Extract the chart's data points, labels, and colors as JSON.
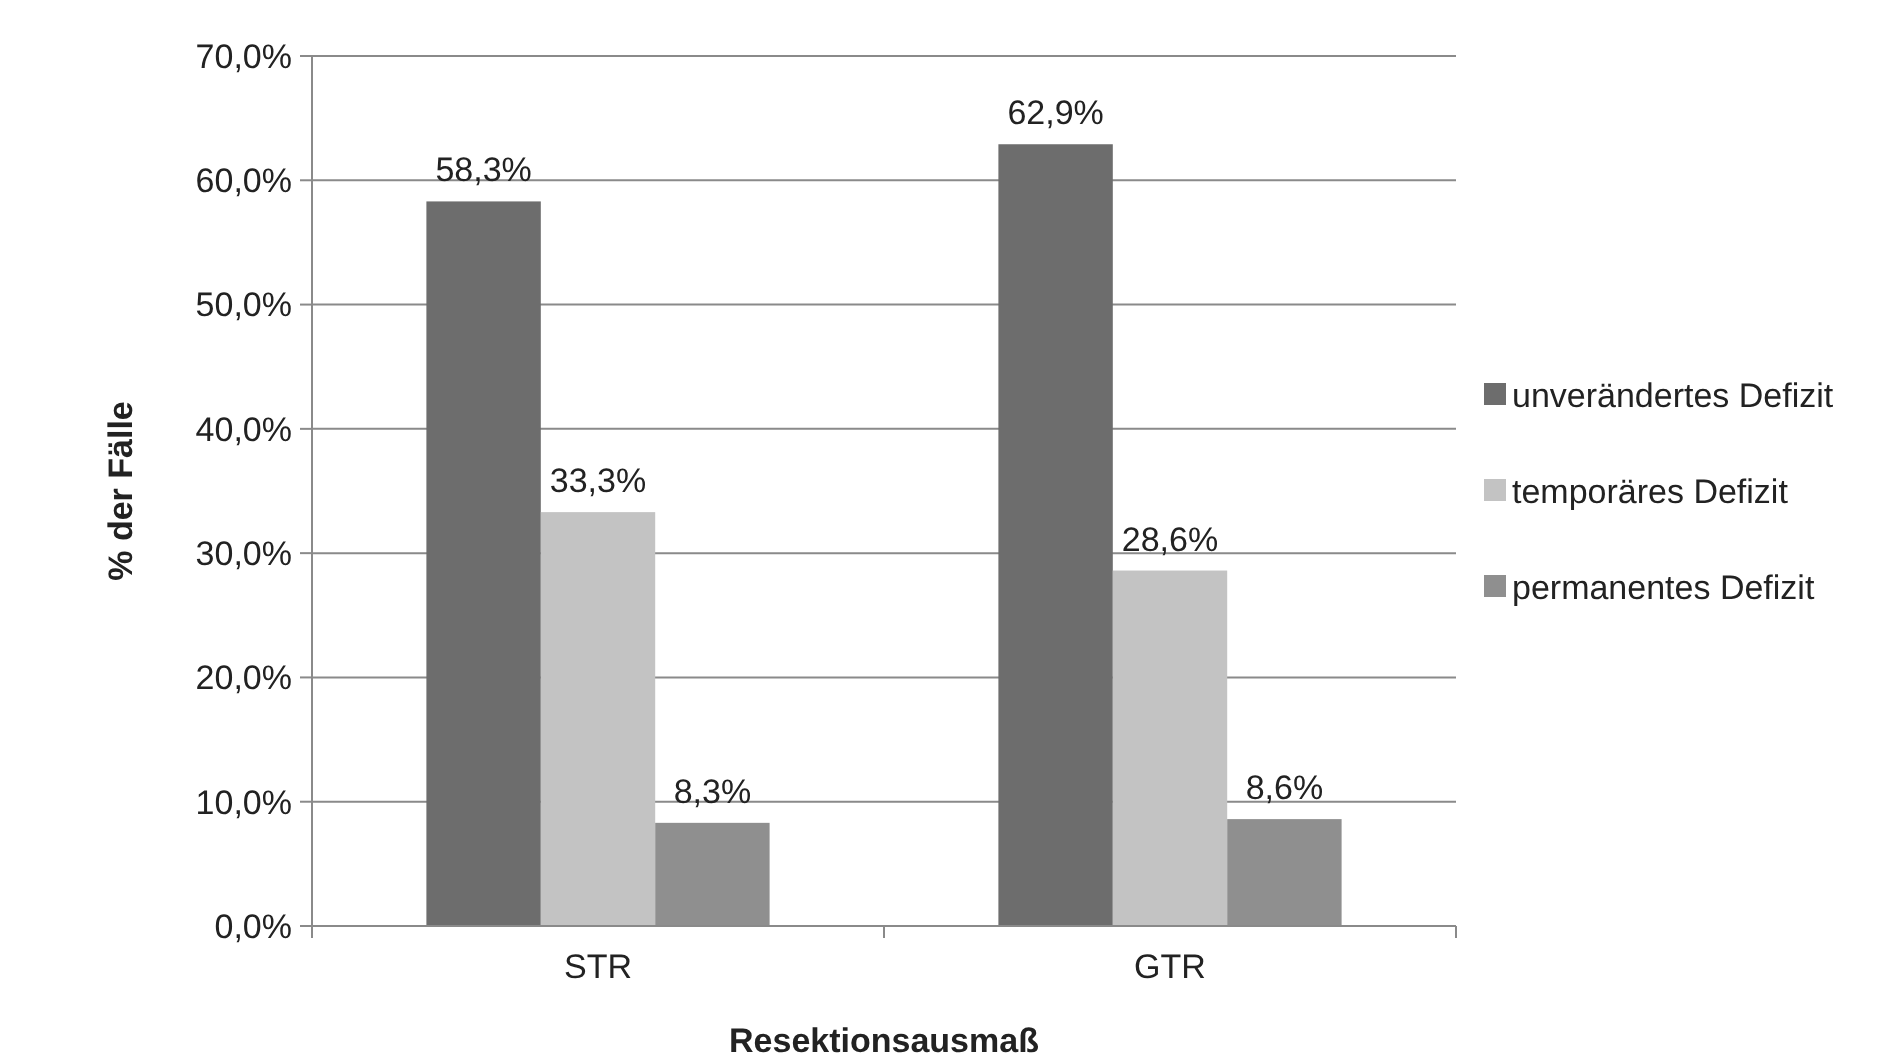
{
  "chart_data": {
    "type": "bar",
    "xlabel": "Resektionsausmaß",
    "ylabel": "% der Fälle",
    "categories": [
      "STR",
      "GTR"
    ],
    "series": [
      {
        "name": "unverändertes Defizit",
        "color": "#6d6d6d",
        "values": [
          58.3,
          62.9
        ],
        "value_labels": [
          "58,3%",
          "62,9%"
        ]
      },
      {
        "name": "temporäres Defizit",
        "color": "#c3c3c3",
        "values": [
          33.3,
          28.6
        ],
        "value_labels": [
          "33,3%",
          "28,6%"
        ]
      },
      {
        "name": "permanentes Defizit",
        "color": "#8f8f8f",
        "values": [
          8.3,
          8.6
        ],
        "value_labels": [
          "8,3%",
          "8,6%"
        ]
      }
    ],
    "ylim": [
      0,
      70
    ],
    "yticks": [
      {
        "value": 0,
        "label": "0,0%"
      },
      {
        "value": 10,
        "label": "10,0%"
      },
      {
        "value": 20,
        "label": "20,0%"
      },
      {
        "value": 30,
        "label": "30,0%"
      },
      {
        "value": 40,
        "label": "40,0%"
      },
      {
        "value": 50,
        "label": "50,0%"
      },
      {
        "value": 60,
        "label": "60,0%"
      },
      {
        "value": 70,
        "label": "70,0%"
      }
    ],
    "grid": "y",
    "legend": "right"
  }
}
